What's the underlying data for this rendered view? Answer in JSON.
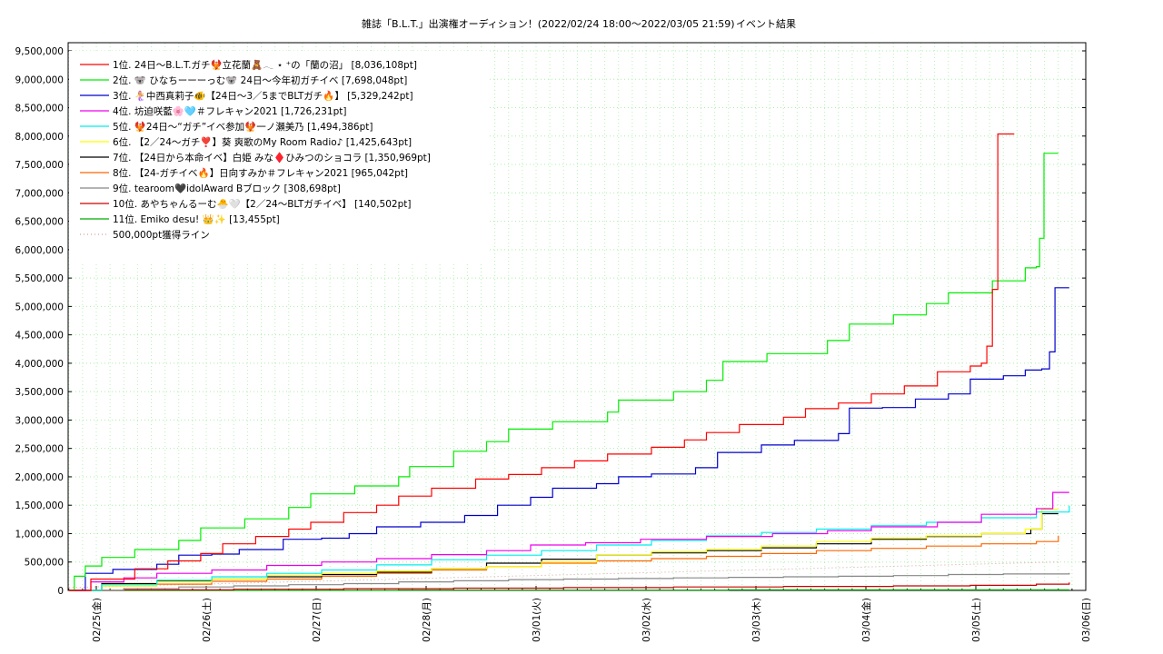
{
  "chart_data": {
    "type": "line",
    "title": "雑誌「B.L.T.」出演権オーディション！(2022/02/24 18:00～2022/03/05 21:59)",
    "subtitle": "イベント結果",
    "xlabel": "",
    "ylabel": "",
    "x_ticks": [
      "02/25(金)",
      "02/26(土)",
      "02/27(日)",
      "02/28(月)",
      "03/01(火)",
      "03/02(水)",
      "03/03(木)",
      "03/04(金)",
      "03/05(土)",
      "03/06(日)"
    ],
    "y_ticks": [
      "0",
      "500,000",
      "1,000,000",
      "1,500,000",
      "2,000,000",
      "2,500,000",
      "3,000,000",
      "3,500,000",
      "4,000,000",
      "4,500,000",
      "5,000,000",
      "5,500,000",
      "6,000,000",
      "6,500,000",
      "7,000,000",
      "7,500,000",
      "8,000,000",
      "8,500,000",
      "9,000,000",
      "9,500,000"
    ],
    "ylim": [
      0,
      9500000
    ],
    "x_unit": "days since 2022/02/24 18:00",
    "xlim": [
      0,
      9.25
    ],
    "grid": true,
    "legend_position": "top-left",
    "series": [
      {
        "name": "1位. 24日〜B.L.T.ガチ🐦‍🔥立花蘭🧸𓂃 ⋆ ⁺の「蘭の沼」 [8,036,108pt]",
        "color": "#ff0000",
        "points": [
          [
            0,
            0
          ],
          [
            0.2,
            200000
          ],
          [
            0.6,
            380000
          ],
          [
            0.9,
            520000
          ],
          [
            1.2,
            650000
          ],
          [
            1.4,
            820000
          ],
          [
            1.7,
            950000
          ],
          [
            2.0,
            1080000
          ],
          [
            2.2,
            1200000
          ],
          [
            2.5,
            1370000
          ],
          [
            2.8,
            1500000
          ],
          [
            3.0,
            1660000
          ],
          [
            3.3,
            1800000
          ],
          [
            3.7,
            1960000
          ],
          [
            4.0,
            2040000
          ],
          [
            4.3,
            2160000
          ],
          [
            4.6,
            2280000
          ],
          [
            4.9,
            2400000
          ],
          [
            5.3,
            2520000
          ],
          [
            5.6,
            2650000
          ],
          [
            5.8,
            2780000
          ],
          [
            6.1,
            2920000
          ],
          [
            6.5,
            3050000
          ],
          [
            6.7,
            3200000
          ],
          [
            7.0,
            3300000
          ],
          [
            7.3,
            3460000
          ],
          [
            7.6,
            3600000
          ],
          [
            7.9,
            3850000
          ],
          [
            8.2,
            3950000
          ],
          [
            8.3,
            4000000
          ],
          [
            8.35,
            4300000
          ],
          [
            8.4,
            5300000
          ],
          [
            8.45,
            8036108
          ],
          [
            8.6,
            8036108
          ]
        ]
      },
      {
        "name": "2位. 🐨 ひなちーーーっむ🐨 24日〜今年初ガチイベ [7,698,048pt]",
        "color": "#00ee00",
        "points": [
          [
            0,
            0
          ],
          [
            0.05,
            250000
          ],
          [
            0.15,
            430000
          ],
          [
            0.3,
            580000
          ],
          [
            0.6,
            720000
          ],
          [
            1.0,
            880000
          ],
          [
            1.2,
            1100000
          ],
          [
            1.6,
            1260000
          ],
          [
            2.0,
            1460000
          ],
          [
            2.2,
            1700000
          ],
          [
            2.6,
            1840000
          ],
          [
            3.0,
            2000000
          ],
          [
            3.1,
            2180000
          ],
          [
            3.5,
            2450000
          ],
          [
            3.8,
            2620000
          ],
          [
            4.0,
            2840000
          ],
          [
            4.4,
            2970000
          ],
          [
            4.9,
            3140000
          ],
          [
            5.0,
            3350000
          ],
          [
            5.5,
            3500000
          ],
          [
            5.8,
            3700000
          ],
          [
            5.95,
            4030000
          ],
          [
            6.35,
            4170000
          ],
          [
            6.9,
            4400000
          ],
          [
            7.1,
            4690000
          ],
          [
            7.5,
            4850000
          ],
          [
            7.8,
            5050000
          ],
          [
            8.0,
            5240000
          ],
          [
            8.4,
            5450000
          ],
          [
            8.7,
            5680000
          ],
          [
            8.8,
            5700000
          ],
          [
            8.83,
            6200000
          ],
          [
            8.87,
            7698048
          ],
          [
            9.0,
            7698048
          ]
        ]
      },
      {
        "name": "3位. 🧜‍♀️中西真莉子🐠【24日〜3／5までBLTガチ🔥】 [5,329,242pt]",
        "color": "#0000cc",
        "points": [
          [
            0,
            0
          ],
          [
            0.15,
            300000
          ],
          [
            0.4,
            370000
          ],
          [
            0.8,
            460000
          ],
          [
            1.0,
            620000
          ],
          [
            1.3,
            640000
          ],
          [
            1.55,
            720000
          ],
          [
            1.95,
            900000
          ],
          [
            2.3,
            920000
          ],
          [
            2.55,
            1000000
          ],
          [
            2.8,
            1120000
          ],
          [
            3.2,
            1200000
          ],
          [
            3.6,
            1320000
          ],
          [
            3.9,
            1500000
          ],
          [
            4.2,
            1640000
          ],
          [
            4.4,
            1800000
          ],
          [
            4.8,
            1880000
          ],
          [
            5.0,
            2000000
          ],
          [
            5.3,
            2050000
          ],
          [
            5.7,
            2160000
          ],
          [
            5.9,
            2430000
          ],
          [
            6.3,
            2560000
          ],
          [
            6.6,
            2640000
          ],
          [
            7.0,
            2760000
          ],
          [
            7.1,
            3210000
          ],
          [
            7.4,
            3220000
          ],
          [
            7.7,
            3370000
          ],
          [
            8.0,
            3460000
          ],
          [
            8.2,
            3720000
          ],
          [
            8.5,
            3780000
          ],
          [
            8.7,
            3880000
          ],
          [
            8.85,
            3900000
          ],
          [
            8.92,
            4200000
          ],
          [
            8.97,
            5329242
          ],
          [
            9.1,
            5329242
          ]
        ]
      },
      {
        "name": "4位. 坊迫咲藍🌸🩵＃フレキャン2021 [1,726,231pt]",
        "color": "#ee00ee",
        "points": [
          [
            0,
            0
          ],
          [
            0.2,
            150000
          ],
          [
            0.5,
            220000
          ],
          [
            0.8,
            300000
          ],
          [
            1.3,
            360000
          ],
          [
            1.8,
            440000
          ],
          [
            2.3,
            500000
          ],
          [
            2.8,
            560000
          ],
          [
            3.3,
            630000
          ],
          [
            3.8,
            700000
          ],
          [
            4.2,
            800000
          ],
          [
            4.7,
            840000
          ],
          [
            5.2,
            900000
          ],
          [
            5.8,
            950000
          ],
          [
            6.4,
            1000000
          ],
          [
            6.9,
            1050000
          ],
          [
            7.3,
            1120000
          ],
          [
            7.9,
            1200000
          ],
          [
            8.3,
            1340000
          ],
          [
            8.8,
            1440000
          ],
          [
            8.95,
            1726231
          ],
          [
            9.1,
            1726231
          ]
        ]
      },
      {
        "name": "5位. 🐦‍🔥24日〜“ガチ”イベ参加🐦‍🔥一ノ瀬美乃 [1,494,386pt]",
        "color": "#00eeee",
        "points": [
          [
            0,
            0
          ],
          [
            0.3,
            100000
          ],
          [
            0.8,
            180000
          ],
          [
            1.3,
            240000
          ],
          [
            1.8,
            300000
          ],
          [
            2.3,
            360000
          ],
          [
            2.8,
            450000
          ],
          [
            3.3,
            540000
          ],
          [
            3.8,
            620000
          ],
          [
            4.3,
            700000
          ],
          [
            4.8,
            800000
          ],
          [
            5.3,
            880000
          ],
          [
            5.8,
            960000
          ],
          [
            6.3,
            1020000
          ],
          [
            6.8,
            1080000
          ],
          [
            7.3,
            1140000
          ],
          [
            7.8,
            1200000
          ],
          [
            8.3,
            1280000
          ],
          [
            8.8,
            1380000
          ],
          [
            9.1,
            1494386
          ]
        ]
      },
      {
        "name": "6位. 【2／24〜ガチ❣️】葵 爽歌のMy Room Radio♪ [1,425,643pt]",
        "color": "#ffff00",
        "points": [
          [
            0,
            0
          ],
          [
            0.3,
            80000
          ],
          [
            0.8,
            150000
          ],
          [
            1.3,
            200000
          ],
          [
            1.8,
            260000
          ],
          [
            2.3,
            300000
          ],
          [
            2.8,
            340000
          ],
          [
            3.3,
            380000
          ],
          [
            3.8,
            420000
          ],
          [
            4.3,
            500000
          ],
          [
            4.8,
            620000
          ],
          [
            5.3,
            680000
          ],
          [
            5.8,
            720000
          ],
          [
            6.3,
            780000
          ],
          [
            6.8,
            860000
          ],
          [
            7.3,
            920000
          ],
          [
            7.8,
            960000
          ],
          [
            8.3,
            1000000
          ],
          [
            8.7,
            1080000
          ],
          [
            8.85,
            1425643
          ],
          [
            9.0,
            1425643
          ]
        ]
      },
      {
        "name": "7位. 【24日から本命イベ】白姫 みな♦️ひみつのショコラ [1,350,969pt]",
        "color": "#000000",
        "points": [
          [
            0,
            0
          ],
          [
            0.3,
            120000
          ],
          [
            0.8,
            160000
          ],
          [
            1.3,
            200000
          ],
          [
            1.8,
            240000
          ],
          [
            2.3,
            280000
          ],
          [
            2.8,
            320000
          ],
          [
            3.3,
            380000
          ],
          [
            3.8,
            480000
          ],
          [
            4.3,
            550000
          ],
          [
            4.8,
            620000
          ],
          [
            5.3,
            660000
          ],
          [
            5.8,
            700000
          ],
          [
            6.3,
            750000
          ],
          [
            6.8,
            820000
          ],
          [
            7.3,
            900000
          ],
          [
            7.8,
            950000
          ],
          [
            8.3,
            1000000
          ],
          [
            8.75,
            1080000
          ],
          [
            8.85,
            1350969
          ],
          [
            9.0,
            1350969
          ]
        ]
      },
      {
        "name": "8位. 【24-ガチイベ🔥】日向すみか＃フレキャン2021 [965,042pt]",
        "color": "#ff6600",
        "points": [
          [
            0,
            0
          ],
          [
            0.3,
            80000
          ],
          [
            0.8,
            110000
          ],
          [
            1.3,
            160000
          ],
          [
            1.8,
            200000
          ],
          [
            2.3,
            250000
          ],
          [
            2.8,
            300000
          ],
          [
            3.3,
            360000
          ],
          [
            3.8,
            420000
          ],
          [
            4.3,
            480000
          ],
          [
            4.8,
            520000
          ],
          [
            5.3,
            560000
          ],
          [
            5.8,
            600000
          ],
          [
            6.3,
            650000
          ],
          [
            6.8,
            700000
          ],
          [
            7.3,
            740000
          ],
          [
            7.8,
            780000
          ],
          [
            8.3,
            820000
          ],
          [
            8.8,
            860000
          ],
          [
            9.0,
            965042
          ]
        ]
      },
      {
        "name": "9位. tearoom🖤idolAward Bブロック [308,698pt]",
        "color": "#888888",
        "points": [
          [
            0,
            0
          ],
          [
            0.5,
            30000
          ],
          [
            1.0,
            60000
          ],
          [
            1.5,
            80000
          ],
          [
            2.0,
            100000
          ],
          [
            2.5,
            120000
          ],
          [
            3.0,
            150000
          ],
          [
            3.5,
            170000
          ],
          [
            4.0,
            190000
          ],
          [
            4.5,
            200000
          ],
          [
            5.0,
            210000
          ],
          [
            5.5,
            220000
          ],
          [
            6.0,
            230000
          ],
          [
            6.5,
            240000
          ],
          [
            7.0,
            250000
          ],
          [
            7.5,
            260000
          ],
          [
            8.0,
            280000
          ],
          [
            8.5,
            290000
          ],
          [
            9.1,
            308698
          ]
        ]
      },
      {
        "name": "10位. あやちゃんるーむ🐣🤍【2／24〜BLTガチイベ】 [140,502pt]",
        "color": "#cc0000",
        "points": [
          [
            0,
            0
          ],
          [
            0.5,
            10000
          ],
          [
            1.5,
            20000
          ],
          [
            2.5,
            30000
          ],
          [
            3.5,
            40000
          ],
          [
            4.5,
            50000
          ],
          [
            5.5,
            60000
          ],
          [
            6.5,
            70000
          ],
          [
            7.5,
            80000
          ],
          [
            8.2,
            90000
          ],
          [
            8.8,
            110000
          ],
          [
            9.1,
            140502
          ]
        ]
      },
      {
        "name": "11位. Emiko desu! 👑✨ [13,455pt]",
        "color": "#00aa00",
        "points": [
          [
            0,
            0
          ],
          [
            3.0,
            5000
          ],
          [
            6.0,
            9000
          ],
          [
            9.1,
            13455
          ]
        ]
      }
    ],
    "threshold_line": {
      "name": "500,000pt獲得ライン",
      "color": "#d6a0a0"
    }
  }
}
